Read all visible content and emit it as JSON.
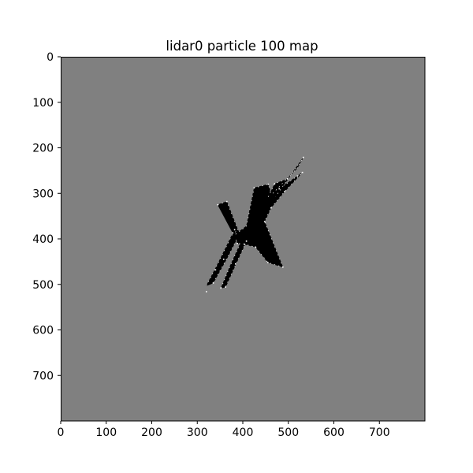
{
  "chart_data": {
    "type": "heatmap",
    "title": "lidar0 particle 100 map",
    "xlabel": "",
    "ylabel": "",
    "xlim": [
      0,
      800
    ],
    "ylim": [
      800,
      0
    ],
    "x_ticks": [
      0,
      100,
      200,
      300,
      400,
      500,
      600,
      700
    ],
    "y_ticks": [
      0,
      100,
      200,
      300,
      400,
      500,
      600,
      700
    ],
    "grid": false,
    "colormap": "gray",
    "colors": {
      "unknown": "#808080",
      "free": "#000000",
      "occupied": "#ffffff"
    },
    "background_value": "unknown",
    "free_space_polygons": [
      [
        [
          320,
          503
        ],
        [
          345,
          455
        ],
        [
          382,
          380
        ],
        [
          395,
          384
        ],
        [
          368,
          438
        ],
        [
          335,
          497
        ]
      ],
      [
        [
          352,
          508
        ],
        [
          372,
          460
        ],
        [
          400,
          398
        ],
        [
          408,
          405
        ],
        [
          382,
          462
        ],
        [
          362,
          506
        ]
      ],
      [
        [
          345,
          325
        ],
        [
          365,
          318
        ],
        [
          390,
          382
        ],
        [
          378,
          387
        ]
      ],
      [
        [
          384,
          390
        ],
        [
          408,
          372
        ],
        [
          425,
          288
        ],
        [
          456,
          280
        ],
        [
          462,
          300
        ],
        [
          480,
          290
        ],
        [
          520,
          262
        ],
        [
          531,
          254
        ],
        [
          492,
          296
        ],
        [
          462,
          332
        ],
        [
          448,
          362
        ],
        [
          488,
          462
        ],
        [
          455,
          452
        ],
        [
          428,
          418
        ],
        [
          404,
          412
        ],
        [
          388,
          410
        ]
      ],
      [
        [
          456,
          308
        ],
        [
          470,
          279
        ],
        [
          498,
          268
        ],
        [
          488,
          288
        ]
      ],
      [
        [
          466,
          300
        ],
        [
          520,
          244
        ],
        [
          533,
          221
        ],
        [
          472,
          307
        ]
      ]
    ],
    "occupied_points": [
      [
        320,
        516
      ],
      [
        335,
        497
      ],
      [
        340,
        468
      ],
      [
        358,
        445
      ],
      [
        382,
        380
      ],
      [
        352,
        508
      ],
      [
        362,
        506
      ],
      [
        384,
        455
      ],
      [
        408,
        405
      ],
      [
        425,
        288
      ],
      [
        456,
        280
      ],
      [
        480,
        290
      ],
      [
        520,
        262
      ],
      [
        531,
        254
      ],
      [
        533,
        221
      ],
      [
        498,
        268
      ],
      [
        492,
        296
      ],
      [
        462,
        332
      ],
      [
        488,
        462
      ],
      [
        455,
        452
      ],
      [
        428,
        418
      ],
      [
        404,
        412
      ],
      [
        388,
        410
      ],
      [
        345,
        325
      ],
      [
        365,
        318
      ],
      [
        378,
        387
      ],
      [
        470,
        279
      ],
      [
        448,
        362
      ]
    ]
  }
}
